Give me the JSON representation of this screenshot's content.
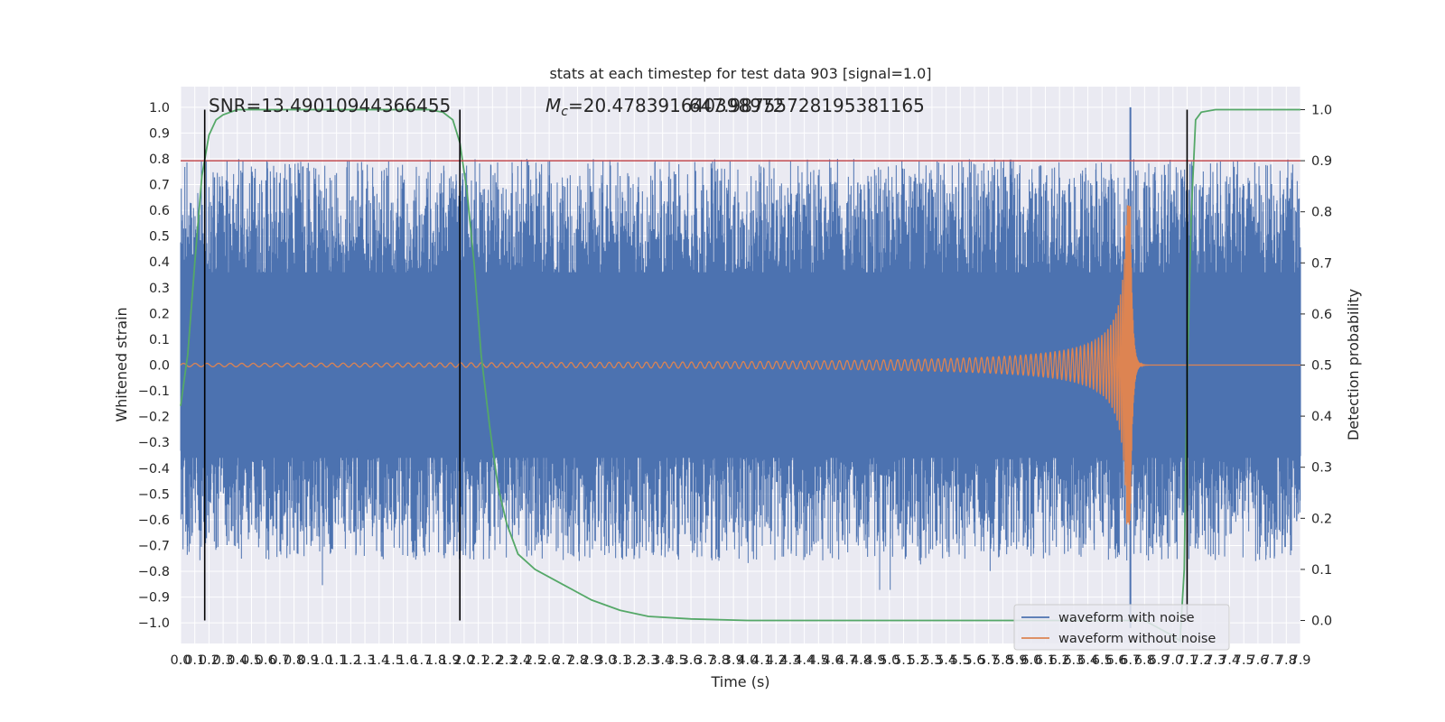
{
  "chart_data": {
    "type": "line",
    "title": "stats at each timestep for test data 903 [signal=1.0]",
    "xlabel": "Time (s)",
    "ylabel": "Whitened strain",
    "y2label": "Detection probability",
    "xlim": [
      0.0,
      7.9
    ],
    "ylim": [
      -1.08,
      1.08
    ],
    "y2lim": [
      -0.045,
      1.045
    ],
    "x_ticks": [
      "0.0",
      "0.1",
      "0.2",
      "0.3",
      "0.4",
      "0.5",
      "0.6",
      "0.7",
      "0.8",
      "0.9",
      "1.0",
      "1.1",
      "1.2",
      "1.3",
      "1.4",
      "1.5",
      "1.6",
      "1.7",
      "1.8",
      "1.9",
      "2.0",
      "2.1",
      "2.2",
      "2.3",
      "2.4",
      "2.5",
      "2.6",
      "2.7",
      "2.8",
      "2.9",
      "3.0",
      "3.1",
      "3.2",
      "3.3",
      "3.4",
      "3.5",
      "3.6",
      "3.7",
      "3.8",
      "3.9",
      "4.0",
      "4.1",
      "4.2",
      "4.3",
      "4.4",
      "4.5",
      "4.6",
      "4.7",
      "4.8",
      "4.9",
      "5.0",
      "5.1",
      "5.2",
      "5.3",
      "5.4",
      "5.5",
      "5.6",
      "5.7",
      "5.8",
      "5.9",
      "6.0",
      "6.1",
      "6.2",
      "6.3",
      "6.4",
      "6.5",
      "6.6",
      "6.7",
      "6.8",
      "6.9",
      "7.0",
      "7.1",
      "7.2",
      "7.3",
      "7.4",
      "7.5",
      "7.6",
      "7.7",
      "7.8",
      "7.9"
    ],
    "y_ticks": [
      "1.0",
      "0.9",
      "0.8",
      "0.7",
      "0.6",
      "0.5",
      "0.4",
      "0.3",
      "0.2",
      "0.1",
      "0.0",
      "−0.1",
      "−0.2",
      "−0.3",
      "−0.4",
      "−0.5",
      "−0.6",
      "−0.7",
      "−0.8",
      "−0.9",
      "−1.0"
    ],
    "y2_ticks": [
      "1.0",
      "0.9",
      "0.8",
      "0.7",
      "0.6",
      "0.5",
      "0.4",
      "0.3",
      "0.2",
      "0.1",
      "0.0"
    ],
    "annotations": {
      "snr": "SNR=13.49010944366455",
      "mc_symbol": "M",
      "mc_sub": "c",
      "mc_value": "=20.478391640398972",
      "mc_overlap": "647.98755728195381165"
    },
    "threshold": {
      "value": 0.9,
      "axis": "y2",
      "color": "#c44e52"
    },
    "vertical_lines": [
      0.17,
      1.97,
      7.1
    ],
    "legend": {
      "placement": "lower-right",
      "entries": [
        "waveform with noise",
        "waveform without noise"
      ]
    },
    "series": [
      {
        "name": "waveform with noise",
        "color": "#4c72b0",
        "kind": "noise",
        "envelope_approx": [
          -0.62,
          0.82
        ],
        "peak": {
          "x": 6.7,
          "min": -1.02,
          "max": 1.0
        }
      },
      {
        "name": "waveform without noise",
        "color": "#dd8452",
        "kind": "chirp",
        "merger_x": 6.7,
        "peak_amplitude": 0.62
      },
      {
        "name": "Detection probability",
        "color": "#55a868",
        "axis": "y2",
        "x": [
          0.0,
          0.05,
          0.1,
          0.15,
          0.2,
          0.25,
          0.3,
          0.35,
          0.4,
          0.5,
          0.6,
          0.8,
          1.0,
          1.2,
          1.4,
          1.6,
          1.75,
          1.85,
          1.92,
          1.97,
          2.02,
          2.07,
          2.12,
          2.18,
          2.24,
          2.3,
          2.38,
          2.5,
          2.7,
          2.9,
          3.1,
          3.3,
          3.6,
          4.0,
          5.0,
          6.0,
          6.8,
          7.0,
          7.05,
          7.08,
          7.1,
          7.13,
          7.16,
          7.2,
          7.3,
          7.5,
          7.9
        ],
        "values": [
          0.42,
          0.52,
          0.7,
          0.87,
          0.95,
          0.98,
          0.99,
          0.995,
          1.0,
          1.0,
          1.0,
          1.0,
          1.0,
          1.0,
          1.0,
          1.0,
          1.0,
          0.995,
          0.98,
          0.935,
          0.84,
          0.7,
          0.52,
          0.38,
          0.26,
          0.19,
          0.13,
          0.1,
          0.07,
          0.04,
          0.02,
          0.008,
          0.003,
          0.0,
          0.0,
          0.0,
          0.0,
          -0.03,
          -0.04,
          0.1,
          0.47,
          0.8,
          0.98,
          0.995,
          1.0,
          1.0,
          1.0
        ]
      }
    ],
    "grid": true,
    "background": "#eaeaf2"
  }
}
